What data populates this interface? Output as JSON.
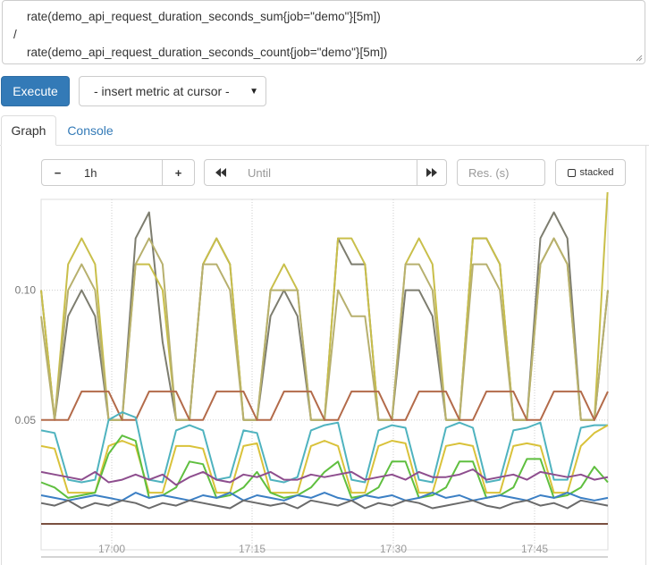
{
  "query": {
    "line1": "    rate(demo_api_request_duration_seconds_sum{job=\"demo\"}[5m])",
    "line2": "/",
    "line3": "    rate(demo_api_request_duration_seconds_count{job=\"demo\"}[5m])"
  },
  "execute_label": "Execute",
  "metric_select": {
    "selected": "- insert metric at cursor -"
  },
  "tabs": [
    {
      "label": "Graph",
      "active": true
    },
    {
      "label": "Console",
      "active": false
    }
  ],
  "controls": {
    "range_minus": "−",
    "range_value": "1h",
    "range_plus": "+",
    "back_icon": "fast-backward-icon",
    "until_placeholder": "Until",
    "forward_icon": "fast-forward-icon",
    "resolution_placeholder": "Res. (s)",
    "stacked_label": "stacked"
  },
  "chart_data": {
    "type": "line",
    "x_ticks": [
      "17:00",
      "17:15",
      "17:30",
      "17:45"
    ],
    "y_ticks": [
      "0.05",
      "0.10"
    ],
    "ylim": [
      0,
      0.135
    ],
    "grid": true,
    "series": [
      {
        "color": "#7d7d6f",
        "values": [
          0.1,
          0.05,
          0.09,
          0.1,
          0.09,
          0.05,
          0.05,
          0.12,
          0.13,
          0.08,
          0.05,
          0.05,
          0.11,
          0.12,
          0.11,
          0.05,
          0.05,
          0.09,
          0.1,
          0.09,
          0.05,
          0.05,
          0.12,
          0.11,
          0.11,
          0.05,
          0.05,
          0.1,
          0.1,
          0.09,
          0.05,
          0.05,
          0.12,
          0.12,
          0.11,
          0.05,
          0.05,
          0.12,
          0.13,
          0.12,
          0.05,
          0.05,
          0.1
        ]
      },
      {
        "color": "#c9bf4a",
        "values": [
          0.1,
          0.05,
          0.11,
          0.12,
          0.11,
          0.05,
          0.05,
          0.11,
          0.11,
          0.1,
          0.05,
          0.05,
          0.11,
          0.12,
          0.11,
          0.05,
          0.05,
          0.1,
          0.11,
          0.1,
          0.05,
          0.05,
          0.12,
          0.12,
          0.11,
          0.05,
          0.05,
          0.11,
          0.12,
          0.11,
          0.05,
          0.05,
          0.12,
          0.12,
          0.11,
          0.05,
          0.05,
          0.11,
          0.12,
          0.11,
          0.05,
          0.05,
          0.14
        ]
      },
      {
        "color": "#b7b06e",
        "values": [
          0.09,
          0.05,
          0.1,
          0.11,
          0.1,
          0.05,
          0.05,
          0.11,
          0.12,
          0.11,
          0.05,
          0.05,
          0.11,
          0.11,
          0.1,
          0.05,
          0.05,
          0.1,
          0.1,
          0.1,
          0.05,
          0.05,
          0.1,
          0.09,
          0.09,
          0.05,
          0.05,
          0.11,
          0.11,
          0.1,
          0.05,
          0.05,
          0.11,
          0.11,
          0.1,
          0.05,
          0.05,
          0.11,
          0.12,
          0.11,
          0.05,
          0.05,
          0.1
        ]
      },
      {
        "color": "#b36b4a",
        "values": [
          0.05,
          0.05,
          0.05,
          0.061,
          0.061,
          0.061,
          0.05,
          0.05,
          0.061,
          0.061,
          0.061,
          0.05,
          0.05,
          0.061,
          0.061,
          0.061,
          0.05,
          0.05,
          0.061,
          0.061,
          0.061,
          0.05,
          0.05,
          0.061,
          0.061,
          0.061,
          0.05,
          0.05,
          0.061,
          0.061,
          0.061,
          0.05,
          0.05,
          0.061,
          0.061,
          0.061,
          0.05,
          0.05,
          0.061,
          0.061,
          0.061,
          0.05,
          0.061
        ]
      },
      {
        "color": "#4fb3bf",
        "values": [
          0.046,
          0.045,
          0.027,
          0.026,
          0.027,
          0.05,
          0.053,
          0.051,
          0.027,
          0.026,
          0.046,
          0.048,
          0.046,
          0.027,
          0.028,
          0.046,
          0.045,
          0.027,
          0.026,
          0.028,
          0.046,
          0.048,
          0.049,
          0.027,
          0.026,
          0.046,
          0.048,
          0.047,
          0.027,
          0.026,
          0.047,
          0.049,
          0.047,
          0.026,
          0.027,
          0.046,
          0.047,
          0.049,
          0.027,
          0.027,
          0.047,
          0.048,
          0.048
        ]
      },
      {
        "color": "#d9c23a",
        "values": [
          0.04,
          0.039,
          0.022,
          0.022,
          0.022,
          0.04,
          0.042,
          0.04,
          0.022,
          0.022,
          0.04,
          0.04,
          0.039,
          0.022,
          0.022,
          0.04,
          0.041,
          0.022,
          0.022,
          0.022,
          0.04,
          0.042,
          0.04,
          0.022,
          0.022,
          0.04,
          0.042,
          0.041,
          0.022,
          0.022,
          0.04,
          0.041,
          0.04,
          0.022,
          0.022,
          0.04,
          0.041,
          0.04,
          0.022,
          0.022,
          0.04,
          0.045,
          0.048
        ]
      },
      {
        "color": "#5fbf3f",
        "values": [
          0.026,
          0.024,
          0.02,
          0.021,
          0.022,
          0.037,
          0.044,
          0.042,
          0.02,
          0.021,
          0.024,
          0.034,
          0.033,
          0.02,
          0.021,
          0.024,
          0.03,
          0.022,
          0.02,
          0.021,
          0.024,
          0.03,
          0.034,
          0.02,
          0.021,
          0.024,
          0.034,
          0.034,
          0.02,
          0.021,
          0.024,
          0.034,
          0.034,
          0.02,
          0.021,
          0.024,
          0.035,
          0.035,
          0.02,
          0.021,
          0.024,
          0.032,
          0.026
        ]
      },
      {
        "color": "#8e4e8e",
        "values": [
          0.03,
          0.029,
          0.028,
          0.027,
          0.03,
          0.026,
          0.027,
          0.029,
          0.027,
          0.029,
          0.025,
          0.028,
          0.03,
          0.027,
          0.026,
          0.029,
          0.028,
          0.03,
          0.027,
          0.027,
          0.029,
          0.028,
          0.029,
          0.03,
          0.027,
          0.028,
          0.029,
          0.027,
          0.03,
          0.028,
          0.028,
          0.029,
          0.031,
          0.027,
          0.028,
          0.029,
          0.027,
          0.03,
          0.029,
          0.028,
          0.029,
          0.027,
          0.028
        ]
      },
      {
        "color": "#3b7fc4",
        "values": [
          0.021,
          0.02,
          0.019,
          0.02,
          0.021,
          0.02,
          0.019,
          0.022,
          0.02,
          0.021,
          0.02,
          0.019,
          0.021,
          0.02,
          0.022,
          0.019,
          0.021,
          0.02,
          0.019,
          0.021,
          0.02,
          0.022,
          0.02,
          0.019,
          0.021,
          0.02,
          0.021,
          0.019,
          0.02,
          0.022,
          0.02,
          0.021,
          0.019,
          0.02,
          0.021,
          0.02,
          0.019,
          0.021,
          0.02,
          0.022,
          0.02,
          0.019,
          0.02
        ]
      },
      {
        "color": "#6a6a6a",
        "values": [
          0.018,
          0.017,
          0.019,
          0.016,
          0.018,
          0.017,
          0.019,
          0.018,
          0.016,
          0.018,
          0.017,
          0.019,
          0.018,
          0.017,
          0.016,
          0.019,
          0.018,
          0.017,
          0.018,
          0.016,
          0.019,
          0.018,
          0.017,
          0.019,
          0.016,
          0.018,
          0.017,
          0.019,
          0.018,
          0.016,
          0.017,
          0.018,
          0.019,
          0.017,
          0.016,
          0.018,
          0.019,
          0.017,
          0.018,
          0.016,
          0.019,
          0.018,
          0.017
        ]
      },
      {
        "color": "#7a5040",
        "values": [
          0.01,
          0.01,
          0.01,
          0.01,
          0.01,
          0.01,
          0.01,
          0.01,
          0.01,
          0.01,
          0.01,
          0.01,
          0.01,
          0.01,
          0.01,
          0.01,
          0.01,
          0.01,
          0.01,
          0.01,
          0.01,
          0.01,
          0.01,
          0.01,
          0.01,
          0.01,
          0.01,
          0.01,
          0.01,
          0.01,
          0.01,
          0.01,
          0.01,
          0.01,
          0.01,
          0.01,
          0.01,
          0.01,
          0.01,
          0.01,
          0.01,
          0.01,
          0.01
        ]
      }
    ]
  }
}
